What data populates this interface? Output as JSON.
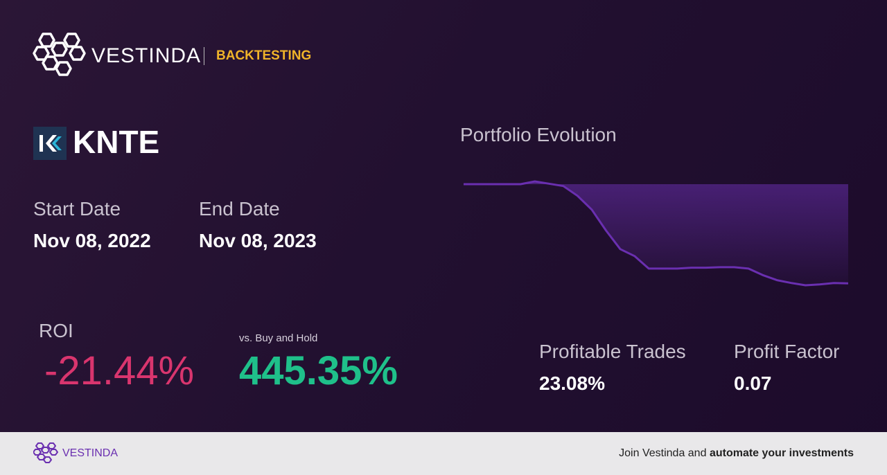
{
  "header": {
    "brand": "VESTINDA",
    "section": "BACKTESTING"
  },
  "asset": {
    "ticker": "KNTE"
  },
  "dates": {
    "start_label": "Start Date",
    "start": "Nov 08, 2022",
    "end_label": "End Date",
    "end": "Nov 08, 2023"
  },
  "roi": {
    "label": "ROI",
    "value": "-21.44%",
    "compare_label": "vs. Buy and Hold",
    "compare_value": "445.35%"
  },
  "stats": {
    "profitable_label": "Profitable Trades",
    "profitable": "23.08%",
    "factor_label": "Profit Factor",
    "factor": "0.07"
  },
  "chart_data": {
    "type": "line",
    "title": "Portfolio Evolution",
    "color": "#6a2fb0",
    "values": [
      100,
      100,
      100,
      100,
      100,
      100.6,
      100.1,
      99.6,
      97.5,
      94.5,
      90,
      86,
      84.5,
      81.8,
      81.8,
      81.8,
      82,
      82,
      82.1,
      82.1,
      81.8,
      80.4,
      79.3,
      78.7,
      78.2,
      78.4,
      78.7,
      78.6
    ]
  },
  "footer": {
    "brand": "VESTINDA",
    "text": "Join Vestinda and",
    "bold": "automate your investments"
  }
}
